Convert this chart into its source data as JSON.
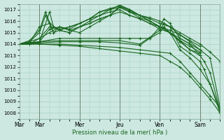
{
  "xlabel": "Pression niveau de la mer( hPa )",
  "ylim": [
    1007.5,
    1017.5
  ],
  "yticks": [
    1008,
    1009,
    1010,
    1011,
    1012,
    1013,
    1014,
    1015,
    1016,
    1017
  ],
  "xtick_labels": [
    "Mar",
    "Mar",
    "Mer",
    "Jeu",
    "Ven",
    "Sam"
  ],
  "xtick_positions": [
    0,
    0.1,
    0.3,
    0.5,
    0.7,
    0.9
  ],
  "background_color": "#cce8e0",
  "grid_color": "#a0ccc0",
  "line_color": "#1a6620",
  "series": [
    {
      "x": [
        0.0,
        0.05,
        0.1,
        0.15,
        0.17,
        0.2,
        0.25,
        0.3,
        0.35,
        0.4,
        0.45,
        0.5,
        0.55,
        0.6,
        0.65,
        0.7,
        0.75,
        0.8,
        0.85,
        0.9,
        0.95,
        1.0
      ],
      "y": [
        1014.0,
        1014.1,
        1014.2,
        1016.8,
        1015.5,
        1015.2,
        1015.0,
        1015.5,
        1015.8,
        1016.2,
        1016.5,
        1017.2,
        1016.8,
        1016.5,
        1016.3,
        1016.0,
        1015.5,
        1014.8,
        1014.2,
        1013.5,
        1012.8,
        1008.5
      ]
    },
    {
      "x": [
        0.0,
        0.05,
        0.1,
        0.15,
        0.2,
        0.25,
        0.3,
        0.35,
        0.4,
        0.45,
        0.5,
        0.55,
        0.6,
        0.65,
        0.7,
        0.75,
        0.8,
        0.85,
        0.9,
        0.95,
        1.0
      ],
      "y": [
        1014.0,
        1014.2,
        1014.5,
        1015.0,
        1015.5,
        1015.2,
        1015.0,
        1015.5,
        1016.0,
        1016.5,
        1017.3,
        1016.9,
        1016.5,
        1016.2,
        1015.8,
        1015.5,
        1015.0,
        1014.5,
        1014.0,
        1013.3,
        1012.5
      ]
    },
    {
      "x": [
        0.0,
        0.05,
        0.1,
        0.13,
        0.17,
        0.2,
        0.25,
        0.3,
        0.35,
        0.4,
        0.45,
        0.5,
        0.55,
        0.6,
        0.65,
        0.7,
        0.75,
        0.8,
        0.85,
        0.9
      ],
      "y": [
        1014.0,
        1014.3,
        1015.2,
        1016.8,
        1015.0,
        1015.2,
        1015.0,
        1015.5,
        1016.0,
        1016.5,
        1017.0,
        1017.4,
        1017.0,
        1016.5,
        1016.0,
        1015.5,
        1015.0,
        1014.3,
        1013.5,
        1013.0
      ]
    },
    {
      "x": [
        0.0,
        0.05,
        0.1,
        0.13,
        0.17,
        0.2,
        0.25,
        0.3,
        0.35,
        0.4,
        0.45,
        0.5,
        0.55,
        0.6,
        0.65,
        0.7,
        0.75,
        0.8,
        0.85,
        0.9
      ],
      "y": [
        1014.0,
        1014.2,
        1015.0,
        1016.5,
        1015.0,
        1015.5,
        1015.3,
        1015.8,
        1016.2,
        1016.8,
        1017.1,
        1017.3,
        1017.0,
        1016.5,
        1016.0,
        1015.5,
        1015.0,
        1014.2,
        1013.5,
        1013.2
      ]
    },
    {
      "x": [
        0.0,
        0.05,
        0.1,
        0.15,
        0.2,
        0.25,
        0.3,
        0.35,
        0.4,
        0.45,
        0.5,
        0.55,
        0.6,
        0.65,
        0.7,
        0.75,
        0.8,
        0.85,
        0.9
      ],
      "y": [
        1014.0,
        1014.1,
        1015.5,
        1015.8,
        1015.2,
        1015.5,
        1015.8,
        1016.2,
        1016.8,
        1017.0,
        1017.2,
        1016.8,
        1016.3,
        1016.0,
        1015.5,
        1015.0,
        1014.3,
        1013.8,
        1013.3
      ]
    },
    {
      "x": [
        0.0,
        0.05,
        0.1,
        0.15,
        0.2,
        0.25,
        0.3,
        0.35,
        0.4,
        0.45,
        0.5,
        0.55,
        0.6,
        0.65,
        0.7,
        0.75,
        0.8,
        0.85,
        0.9
      ],
      "y": [
        1014.0,
        1014.0,
        1014.5,
        1015.5,
        1015.3,
        1015.5,
        1015.8,
        1016.2,
        1016.5,
        1016.8,
        1017.0,
        1016.5,
        1016.2,
        1015.8,
        1015.3,
        1015.0,
        1014.5,
        1014.0,
        1013.5
      ]
    },
    {
      "x": [
        0.0,
        0.05,
        0.1,
        0.15,
        0.2,
        0.25,
        0.3,
        0.35,
        0.4,
        0.45,
        0.5,
        0.55,
        0.6,
        0.65,
        0.7,
        0.75,
        0.8,
        0.85,
        0.9
      ],
      "y": [
        1014.0,
        1014.0,
        1014.2,
        1015.3,
        1015.5,
        1015.2,
        1015.5,
        1015.8,
        1016.2,
        1016.5,
        1016.8,
        1016.5,
        1016.2,
        1015.8,
        1015.5,
        1015.2,
        1014.8,
        1014.3,
        1013.8
      ]
    },
    {
      "x": [
        0.0,
        0.05,
        0.1,
        0.2,
        0.3,
        0.4,
        0.5,
        0.55,
        0.6,
        0.65,
        0.7,
        0.72,
        0.75,
        0.8,
        0.85,
        0.9,
        0.92,
        0.95,
        1.0
      ],
      "y": [
        1014.0,
        1014.0,
        1014.2,
        1014.5,
        1014.5,
        1014.5,
        1014.5,
        1014.5,
        1014.5,
        1014.5,
        1015.5,
        1016.2,
        1015.8,
        1014.5,
        1014.0,
        1013.0,
        1012.5,
        1011.5,
        1008.2
      ]
    },
    {
      "x": [
        0.0,
        0.1,
        0.2,
        0.3,
        0.4,
        0.5,
        0.6,
        0.7,
        0.72,
        0.75,
        0.8,
        0.85,
        0.9,
        0.92,
        0.95,
        1.0
      ],
      "y": [
        1014.0,
        1014.2,
        1014.3,
        1014.3,
        1014.3,
        1014.3,
        1014.0,
        1015.2,
        1015.8,
        1015.5,
        1013.8,
        1013.2,
        1012.5,
        1011.8,
        1010.5,
        1008.0
      ]
    },
    {
      "x": [
        0.0,
        0.1,
        0.2,
        0.3,
        0.4,
        0.5,
        0.6,
        0.65,
        0.7,
        0.72,
        0.75,
        0.8,
        0.85,
        0.9,
        0.95,
        1.0
      ],
      "y": [
        1014.0,
        1014.1,
        1014.2,
        1014.2,
        1014.2,
        1014.1,
        1013.9,
        1014.5,
        1015.0,
        1015.5,
        1015.0,
        1013.5,
        1012.8,
        1011.8,
        1010.5,
        1008.3
      ]
    },
    {
      "x": [
        0.0,
        0.1,
        0.2,
        0.3,
        0.4,
        0.5,
        0.6,
        0.7,
        0.75,
        0.8,
        0.85,
        0.9,
        0.95,
        1.0
      ],
      "y": [
        1014.0,
        1014.0,
        1014.0,
        1013.9,
        1013.8,
        1013.7,
        1013.5,
        1013.3,
        1013.2,
        1012.5,
        1011.5,
        1010.5,
        1009.5,
        1008.5
      ]
    },
    {
      "x": [
        0.0,
        0.1,
        0.2,
        0.3,
        0.4,
        0.5,
        0.6,
        0.7,
        0.75,
        0.8,
        0.85,
        0.9,
        0.95,
        1.0
      ],
      "y": [
        1014.0,
        1014.0,
        1013.9,
        1013.8,
        1013.6,
        1013.4,
        1013.2,
        1013.0,
        1012.5,
        1012.0,
        1011.2,
        1010.2,
        1009.2,
        1008.0
      ]
    }
  ]
}
